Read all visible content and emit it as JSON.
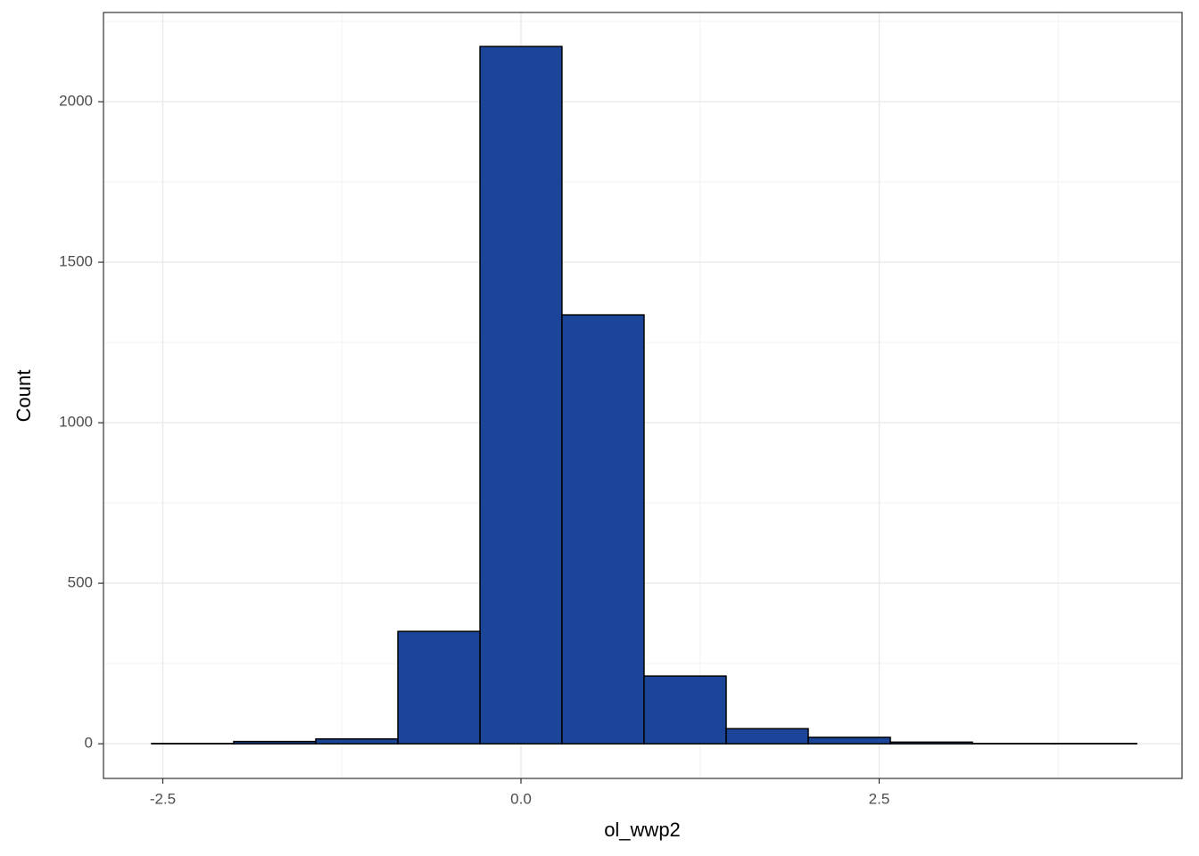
{
  "chart_data": {
    "type": "histogram",
    "x_label": "ol_wwp2",
    "y_label": "Count",
    "bins": [
      -2.578,
      -2.005,
      -1.432,
      -0.859,
      -0.286,
      0.286,
      0.859,
      1.432,
      2.005,
      2.578,
      3.151,
      3.724,
      4.297
    ],
    "values": [
      1,
      7,
      15,
      350,
      2172,
      1336,
      211,
      47,
      20,
      5,
      1,
      1
    ],
    "color": "#1a4599",
    "edge_color": "#000000",
    "xlim": [
      -2.914,
      4.614
    ],
    "ylim": [
      -108,
      2278
    ],
    "xticks": [
      -2.5,
      {
        "value": 0,
        "label": "0.0"
      },
      2.5
    ],
    "yticks": [
      0,
      500,
      1000,
      1500,
      2000
    ],
    "grid": true
  }
}
